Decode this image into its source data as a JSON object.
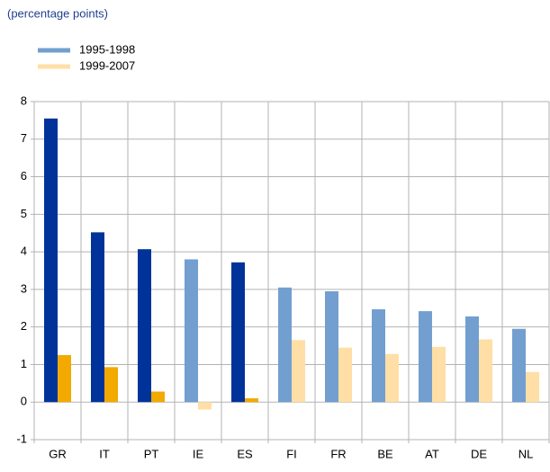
{
  "chart_data": {
    "type": "bar",
    "subtitle": "(percentage points)",
    "categories": [
      "GR",
      "IT",
      "PT",
      "IE",
      "ES",
      "FI",
      "FR",
      "BE",
      "AT",
      "DE",
      "NL"
    ],
    "series": [
      {
        "name": "1995-1998",
        "color": "#729fcf",
        "colors": [
          "#003399",
          "#003399",
          "#003399",
          "#729fcf",
          "#003399",
          "#729fcf",
          "#729fcf",
          "#729fcf",
          "#729fcf",
          "#729fcf",
          "#729fcf"
        ],
        "values": [
          7.55,
          4.52,
          4.07,
          3.8,
          3.72,
          3.05,
          2.95,
          2.47,
          2.42,
          2.28,
          1.95
        ]
      },
      {
        "name": "1999-2007",
        "color": "#ffdfa6",
        "colors": [
          "#f2a900",
          "#f2a900",
          "#f2a900",
          "#ffdfa6",
          "#f2a900",
          "#ffdfa6",
          "#ffdfa6",
          "#ffdfa6",
          "#ffdfa6",
          "#ffdfa6",
          "#ffdfa6"
        ],
        "values": [
          1.25,
          0.93,
          0.28,
          -0.2,
          0.1,
          1.65,
          1.45,
          1.28,
          1.47,
          1.67,
          0.8
        ]
      }
    ],
    "ylim": [
      -1,
      8
    ],
    "yticks": [
      -1,
      0,
      1,
      2,
      3,
      4,
      5,
      6,
      7,
      8
    ],
    "grid": true
  }
}
